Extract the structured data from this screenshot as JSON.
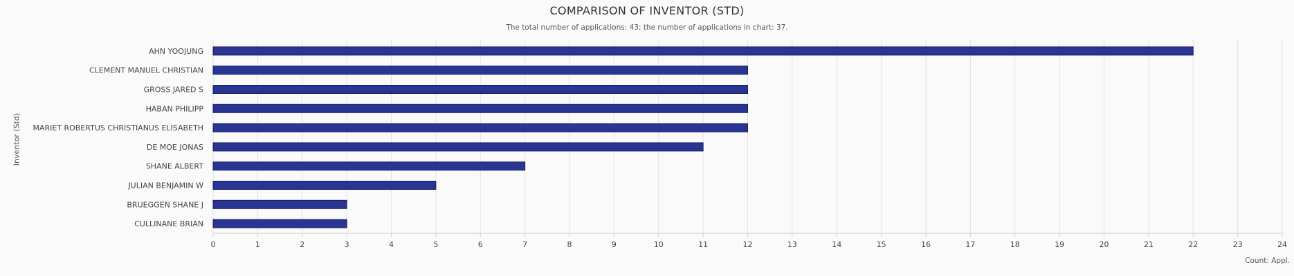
{
  "chart_data": {
    "type": "bar",
    "orientation": "horizontal",
    "title": "COMPARISON OF INVENTOR (STD)",
    "subtitle": "The total number of applications: 43; the number of applications in chart: 37.",
    "ylabel": "Inventor (Std)",
    "xlabel": "Count: Appl.",
    "categories": [
      "AHN YOOJUNG",
      "CLEMENT MANUEL CHRISTIAN",
      "GROSS JARED S",
      "HABAN PHILIPP",
      "MARIET ROBERTUS CHRISTIANUS ELISABETH",
      "DE MOE JONAS",
      "SHANE ALBERT",
      "JULIAN BENJAMIN W",
      "BRUEGGEN SHANE J",
      "CULLINANE BRIAN"
    ],
    "values": [
      22,
      12,
      12,
      12,
      12,
      11,
      7,
      5,
      3,
      3
    ],
    "xlim": [
      0,
      24
    ],
    "xticks": [
      0,
      1,
      2,
      3,
      4,
      5,
      6,
      7,
      8,
      9,
      10,
      11,
      12,
      13,
      14,
      15,
      16,
      17,
      18,
      19,
      20,
      21,
      22,
      23,
      24
    ],
    "grid": true,
    "legend": "none",
    "bar_color": "#283593",
    "bar_edge_color": "#1a1f5e",
    "grid_color": "#e3e3e3"
  }
}
